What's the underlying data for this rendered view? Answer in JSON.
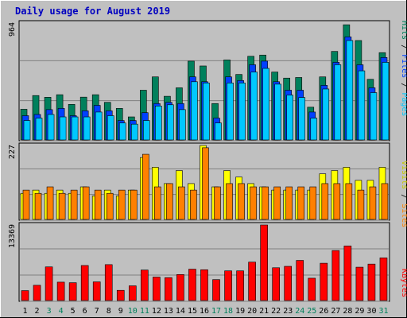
{
  "title": "Daily usage for August 2019",
  "colors": {
    "background": "#C0C0C0",
    "panel_bg": "#C0C0C0",
    "title": "#0000C0",
    "hits": "#00805C",
    "files": "#0040FF",
    "pages": "#00C8FF",
    "visits": "#FFFF00",
    "sites": "#FF8000",
    "kbytes": "#FF0000",
    "weekend_day": "#00805C",
    "weekday": "#000000",
    "grid": "#808080"
  },
  "chart_data": [
    {
      "type": "bar",
      "name": "hits-files-pages",
      "x": [
        1,
        2,
        3,
        4,
        5,
        6,
        7,
        8,
        9,
        10,
        11,
        12,
        13,
        14,
        15,
        16,
        17,
        18,
        19,
        20,
        21,
        22,
        23,
        24,
        25,
        26,
        27,
        28,
        29,
        30,
        31
      ],
      "ymax_label": "964",
      "ylim": [
        0,
        964
      ],
      "right_labels": [
        "Pages",
        "Files",
        "Hits"
      ],
      "series": [
        {
          "name": "Hits",
          "values": [
            253,
            366,
            352,
            373,
            293,
            353,
            373,
            310,
            260,
            190,
            410,
            520,
            360,
            430,
            650,
            610,
            300,
            660,
            540,
            690,
            700,
            560,
            510,
            515,
            270,
            520,
            730,
            950,
            820,
            500,
            720
          ]
        },
        {
          "name": "Files",
          "values": [
            200,
            210,
            250,
            260,
            200,
            240,
            285,
            240,
            160,
            160,
            225,
            300,
            310,
            300,
            520,
            480,
            180,
            520,
            490,
            620,
            650,
            480,
            410,
            410,
            230,
            450,
            640,
            850,
            620,
            430,
            680
          ]
        },
        {
          "name": "Pages",
          "values": [
            160,
            180,
            210,
            190,
            190,
            190,
            230,
            200,
            140,
            130,
            160,
            280,
            290,
            250,
            480,
            470,
            140,
            470,
            470,
            560,
            590,
            460,
            370,
            350,
            180,
            420,
            620,
            820,
            570,
            390,
            640
          ]
        }
      ]
    },
    {
      "type": "bar",
      "name": "visits-sites",
      "x": [
        1,
        2,
        3,
        4,
        5,
        6,
        7,
        8,
        9,
        10,
        11,
        12,
        13,
        14,
        15,
        16,
        17,
        18,
        19,
        20,
        21,
        22,
        23,
        24,
        25,
        26,
        27,
        28,
        29,
        30,
        31
      ],
      "ymax_label": "227",
      "ylim": [
        0,
        227
      ],
      "right_labels": [
        "Sites",
        "Visits"
      ],
      "series": [
        {
          "name": "Visits",
          "values": [
            80,
            90,
            80,
            90,
            80,
            100,
            72,
            90,
            72,
            90,
            190,
            160,
            110,
            150,
            110,
            227,
            100,
            150,
            130,
            110,
            100,
            90,
            90,
            90,
            90,
            140,
            150,
            160,
            120,
            120,
            160
          ]
        },
        {
          "name": "Sites",
          "values": [
            90,
            80,
            100,
            80,
            90,
            100,
            90,
            80,
            90,
            90,
            200,
            100,
            110,
            100,
            90,
            220,
            100,
            110,
            110,
            100,
            100,
            100,
            100,
            100,
            100,
            110,
            110,
            110,
            90,
            100,
            110
          ]
        }
      ]
    },
    {
      "type": "bar",
      "name": "kbytes",
      "x": [
        1,
        2,
        3,
        4,
        5,
        6,
        7,
        8,
        9,
        10,
        11,
        12,
        13,
        14,
        15,
        16,
        17,
        18,
        19,
        20,
        21,
        22,
        23,
        24,
        25,
        26,
        27,
        28,
        29,
        30,
        31
      ],
      "ymax_label": "13369",
      "ylim": [
        0,
        13369
      ],
      "right_labels": [
        "KBytes"
      ],
      "series": [
        {
          "name": "KBytes",
          "values": [
            1750,
            2700,
            5950,
            3250,
            3150,
            6200,
            3300,
            6350,
            1800,
            2600,
            5400,
            4150,
            4050,
            4600,
            5550,
            5450,
            3700,
            5250,
            5250,
            6800,
            13369,
            5800,
            6050,
            7100,
            3950,
            6600,
            8850,
            9650,
            5900,
            6450,
            7550
          ]
        }
      ]
    }
  ],
  "x_labels": [
    "1",
    "2",
    "3",
    "4",
    "5",
    "6",
    "7",
    "8",
    "9",
    "10",
    "11",
    "12",
    "13",
    "14",
    "15",
    "16",
    "17",
    "18",
    "19",
    "20",
    "21",
    "22",
    "23",
    "24",
    "25",
    "26",
    "27",
    "28",
    "29",
    "30",
    "31"
  ],
  "weekend_days": [
    3,
    4,
    10,
    11,
    17,
    18,
    24,
    25,
    31
  ]
}
